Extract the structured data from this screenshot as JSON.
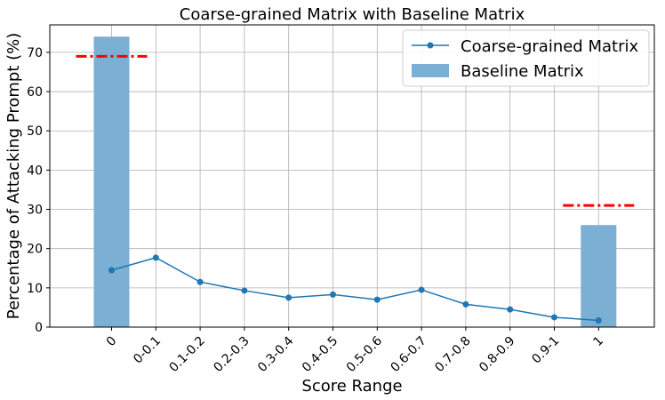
{
  "chart_data": {
    "type": "bar",
    "title": "Coarse-grained Matrix with Baseline Matrix",
    "xlabel": "Score Range",
    "ylabel": "Percentage of Attacking Prompt (%)",
    "categories": [
      "0",
      "0-0.1",
      "0.1-0.2",
      "0.2-0.3",
      "0.3-0.4",
      "0.4-0.5",
      "0.5-0.6",
      "0.6-0.7",
      "0.7-0.8",
      "0.8-0.9",
      "0.9-1",
      "1"
    ],
    "ylim": [
      0,
      77
    ],
    "yticks": [
      0,
      10,
      20,
      30,
      40,
      50,
      60,
      70
    ],
    "grid": true,
    "legend_position": "top-right",
    "series": [
      {
        "name": "Coarse-grained Matrix",
        "kind": "line",
        "color": "#1f77b4",
        "values": [
          14.5,
          17.7,
          11.5,
          9.3,
          7.5,
          8.3,
          7.0,
          9.5,
          5.8,
          4.5,
          2.5,
          1.7
        ]
      },
      {
        "name": "Baseline Matrix",
        "kind": "bar",
        "color": "#7bafd4",
        "values": [
          74,
          null,
          null,
          null,
          null,
          null,
          null,
          null,
          null,
          null,
          null,
          26
        ]
      }
    ],
    "reference_lines": [
      {
        "category": "0",
        "value": 69,
        "color": "#ff0000",
        "style": "dash-dot"
      },
      {
        "category": "1",
        "value": 31,
        "color": "#ff0000",
        "style": "dash-dot"
      }
    ]
  }
}
